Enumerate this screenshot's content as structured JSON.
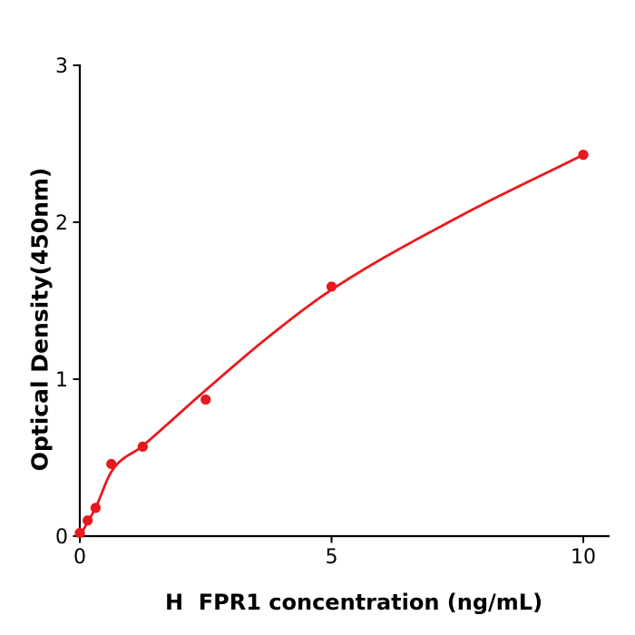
{
  "page": {
    "background": "#ffffff"
  },
  "chart_data": {
    "type": "scatter",
    "title": "",
    "xlabel": "H  FPR1 concentration (ng/mL)",
    "ylabel": "Optical Density(450nm)",
    "xlim": [
      0,
      10.5
    ],
    "ylim": [
      0,
      3
    ],
    "x_ticks": [
      0,
      5,
      10
    ],
    "y_ticks": [
      0,
      1,
      2,
      3
    ],
    "grid": false,
    "legend": "none",
    "axis_color": "#000000",
    "point_color": "#e8191d",
    "curve_color": "#e8191d",
    "series": [
      {
        "name": "standard-data-points",
        "type": "scatter",
        "x": [
          0,
          0.156,
          0.313,
          0.625,
          1.25,
          2.5,
          5,
          10
        ],
        "y": [
          0.02,
          0.1,
          0.18,
          0.46,
          0.57,
          0.87,
          1.59,
          2.43
        ]
      },
      {
        "name": "fitted-standard-curve",
        "type": "line",
        "x": [
          0,
          0.156,
          0.313,
          0.625,
          1.25,
          2.5,
          3.75,
          5,
          7.5,
          10
        ],
        "y": [
          0.0,
          0.09,
          0.18,
          0.41,
          0.575,
          0.93,
          1.27,
          1.57,
          2.03,
          2.43
        ]
      }
    ]
  }
}
